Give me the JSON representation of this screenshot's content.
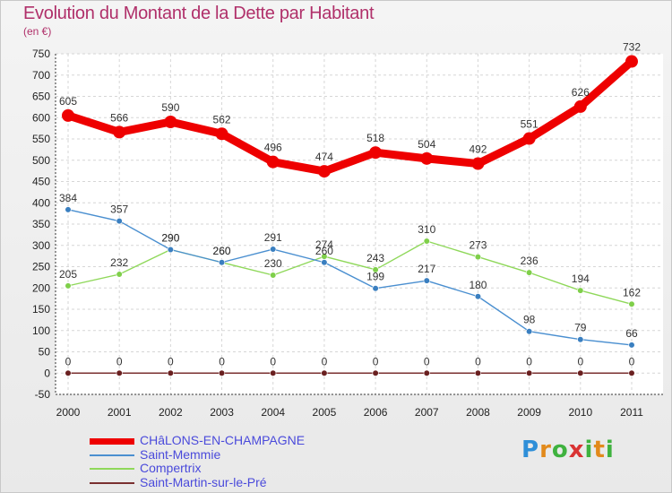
{
  "title": "Evolution du Montant de la Dette par Habitant",
  "subtitle": "(en €)",
  "logo": {
    "text": "Proxiti"
  },
  "chart_data": {
    "type": "line",
    "x": [
      "2000",
      "2001",
      "2002",
      "2003",
      "2004",
      "2005",
      "2006",
      "2007",
      "2008",
      "2009",
      "2010",
      "2011"
    ],
    "ylim": [
      -50,
      750
    ],
    "yticks": [
      -50,
      0,
      50,
      100,
      150,
      200,
      250,
      300,
      350,
      400,
      450,
      500,
      550,
      600,
      650,
      700,
      750
    ],
    "grid": true,
    "legend_position": "bottom-left",
    "series": [
      {
        "name": "CHâLONS-EN-CHAMPAGNE",
        "color": "#ee0000",
        "values": [
          605,
          566,
          590,
          562,
          496,
          474,
          518,
          504,
          492,
          551,
          626,
          732
        ]
      },
      {
        "name": "Saint-Memmie",
        "color": "#4a8fd0",
        "values": [
          384,
          357,
          290,
          260,
          291,
          260,
          199,
          217,
          180,
          98,
          79,
          66
        ]
      },
      {
        "name": "Compertrix",
        "color": "#8fd85a",
        "values": [
          205,
          232,
          290,
          260,
          230,
          274,
          243,
          310,
          273,
          236,
          194,
          162
        ]
      },
      {
        "name": "Saint-Martin-sur-le-Pré",
        "color": "#7a3030",
        "values": [
          0,
          0,
          0,
          0,
          0,
          0,
          0,
          0,
          0,
          0,
          0,
          0
        ]
      }
    ]
  }
}
